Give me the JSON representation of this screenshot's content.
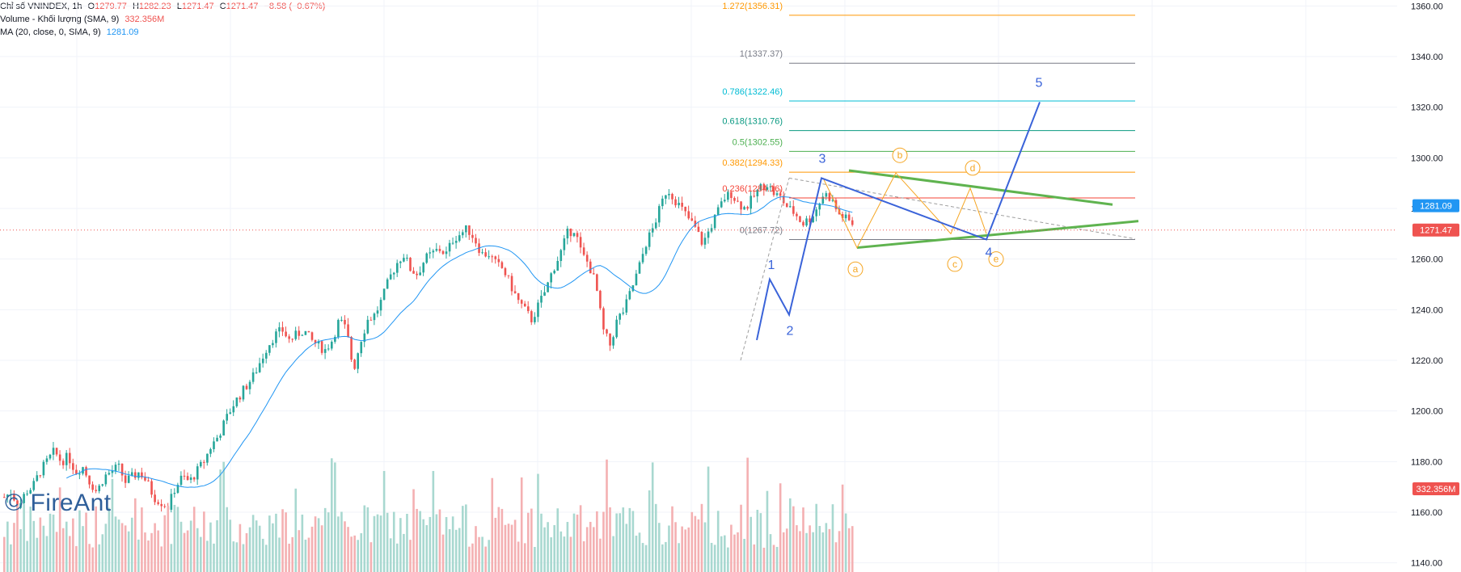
{
  "legend": {
    "title": "Chỉ số VNINDEX, 1h",
    "o_label": "O",
    "o": "1279.77",
    "h_label": "H",
    "h": "1282.23",
    "l_label": "L",
    "l": "1271.47",
    "c_label": "C",
    "c": "1271.47",
    "change": "−8.58 (−0.67%)",
    "volume_label": "Volume - Khối lượng (SMA, 9)",
    "volume_value": "332.356M",
    "ma_label": "MA (20, close, 0, SMA, 9)",
    "ma_value": "1281.09"
  },
  "watermark": "© FireAnt",
  "colors": {
    "up": "#26a69a",
    "down": "#ef5350",
    "ma": "#2196f3",
    "wave": "#3a63d9",
    "sub_wave": "#f5a623",
    "triangle": "#5fb34f"
  },
  "chart_data": {
    "type": "candlestick",
    "timeframe": "1h",
    "ylim": [
      1130,
      1370
    ],
    "y_ticks": [
      "1140.00",
      "1160.00",
      "1180.00",
      "1200.00",
      "1220.00",
      "1240.00",
      "1260.00",
      "1280.00",
      "1300.00",
      "1320.00",
      "1340.00",
      "1360.00"
    ],
    "grid": true,
    "last_price": "1271.47",
    "ma_price": "1281.09",
    "volume_badge": "332.356M",
    "fib_levels": [
      {
        "label": "0(1267.72)",
        "value": 1267.72,
        "color": "#787b86"
      },
      {
        "label": "0.236(1284.16)",
        "value": 1284.16,
        "color": "#f44336"
      },
      {
        "label": "0.382(1294.33)",
        "value": 1294.33,
        "color": "#ff9800"
      },
      {
        "label": "0.5(1302.55)",
        "value": 1302.55,
        "color": "#4caf50"
      },
      {
        "label": "0.618(1310.76)",
        "value": 1310.76,
        "color": "#089981"
      },
      {
        "label": "0.786(1322.46)",
        "value": 1322.46,
        "color": "#00bcd4"
      },
      {
        "label": "1(1337.37)",
        "value": 1337.37,
        "color": "#787b86"
      },
      {
        "label": "1.272(1356.31)",
        "value": 1356.31,
        "color": "#ff9800"
      }
    ],
    "wave_labels": [
      "1",
      "2",
      "3",
      "4",
      "5"
    ],
    "subwave_labels": [
      "a",
      "b",
      "c",
      "d",
      "e"
    ],
    "series_trend_points": [
      1166,
      1168,
      1162,
      1168,
      1170,
      1176,
      1180,
      1184,
      1180,
      1182,
      1176,
      1178,
      1172,
      1168,
      1174,
      1176,
      1178,
      1172,
      1174,
      1176,
      1172,
      1166,
      1164,
      1162,
      1170,
      1174,
      1172,
      1176,
      1180,
      1186,
      1190,
      1196,
      1202,
      1206,
      1210,
      1214,
      1220,
      1226,
      1230,
      1232,
      1228,
      1230,
      1232,
      1228,
      1226,
      1224,
      1228,
      1236,
      1232,
      1216,
      1228,
      1236,
      1238,
      1244,
      1252,
      1258,
      1262,
      1256,
      1254,
      1260,
      1262,
      1264,
      1262,
      1268,
      1270,
      1272,
      1268,
      1262,
      1262,
      1258,
      1256,
      1250,
      1244,
      1240,
      1236,
      1242,
      1248,
      1256,
      1262,
      1270,
      1272,
      1262,
      1258,
      1250,
      1232,
      1226,
      1236,
      1240,
      1248,
      1256,
      1266,
      1272,
      1280,
      1288,
      1284,
      1280,
      1276,
      1272,
      1266,
      1272,
      1278,
      1284,
      1286,
      1282,
      1280,
      1284,
      1288,
      1290,
      1286,
      1284,
      1280,
      1278,
      1274,
      1276,
      1280,
      1286,
      1284,
      1278,
      1276,
      1274
    ]
  }
}
